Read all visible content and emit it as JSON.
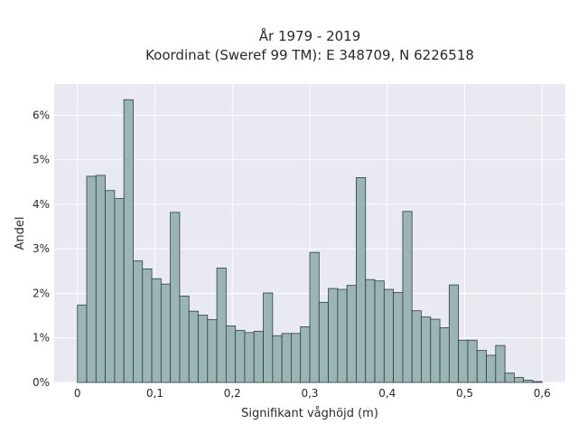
{
  "chart_data": {
    "type": "bar",
    "title": "År 1979 - 2019",
    "subtitle": "Koordinat (Sweref 99 TM): E 348709, N 6226518",
    "xlabel": "Signifikant våghöjd (m)",
    "ylabel": "Andel",
    "xlim": [
      -0.03,
      0.63
    ],
    "ylim": [
      0,
      6.7
    ],
    "bin_width": 0.012,
    "x_ticks": [
      {
        "value": 0,
        "label": "0"
      },
      {
        "value": 0.1,
        "label": "0,1"
      },
      {
        "value": 0.2,
        "label": "0,2"
      },
      {
        "value": 0.3,
        "label": "0,3"
      },
      {
        "value": 0.4,
        "label": "0,4"
      },
      {
        "value": 0.5,
        "label": "0,5"
      },
      {
        "value": 0.6,
        "label": "0,6"
      }
    ],
    "y_ticks": [
      {
        "value": 0,
        "label": "0%"
      },
      {
        "value": 1,
        "label": "1%"
      },
      {
        "value": 2,
        "label": "2%"
      },
      {
        "value": 3,
        "label": "3%"
      },
      {
        "value": 4,
        "label": "4%"
      },
      {
        "value": 5,
        "label": "5%"
      },
      {
        "value": 6,
        "label": "6%"
      }
    ],
    "bin_starts": [
      0,
      0.012,
      0.024,
      0.036,
      0.048,
      0.06,
      0.072,
      0.084,
      0.096,
      0.108,
      0.12,
      0.132,
      0.144,
      0.156,
      0.168,
      0.18,
      0.192,
      0.204,
      0.216,
      0.228,
      0.24,
      0.252,
      0.264,
      0.276,
      0.288,
      0.3,
      0.312,
      0.324,
      0.336,
      0.348,
      0.36,
      0.372,
      0.384,
      0.396,
      0.408,
      0.42,
      0.432,
      0.444,
      0.456,
      0.468,
      0.48,
      0.492,
      0.504,
      0.516,
      0.528,
      0.54,
      0.552,
      0.564,
      0.576,
      0.588
    ],
    "values": [
      1.74,
      4.63,
      4.65,
      4.31,
      4.13,
      6.35,
      2.73,
      2.55,
      2.33,
      2.21,
      3.82,
      1.94,
      1.6,
      1.51,
      1.41,
      2.57,
      1.27,
      1.17,
      1.12,
      1.15,
      2.01,
      1.05,
      1.1,
      1.1,
      1.25,
      2.92,
      1.8,
      2.11,
      2.09,
      2.18,
      4.6,
      2.31,
      2.28,
      2.09,
      2.02,
      3.84,
      1.61,
      1.47,
      1.42,
      1.23,
      2.19,
      0.95,
      0.95,
      0.72,
      0.61,
      0.83,
      0.21,
      0.11,
      0.05,
      0.02
    ],
    "grid": true,
    "legend": "none",
    "colors": {
      "bar_fill": "#9bb5b5",
      "bar_edge": "#2f3f3f",
      "plot_background": "#e9e9f1",
      "grid": "#ffffff"
    }
  }
}
